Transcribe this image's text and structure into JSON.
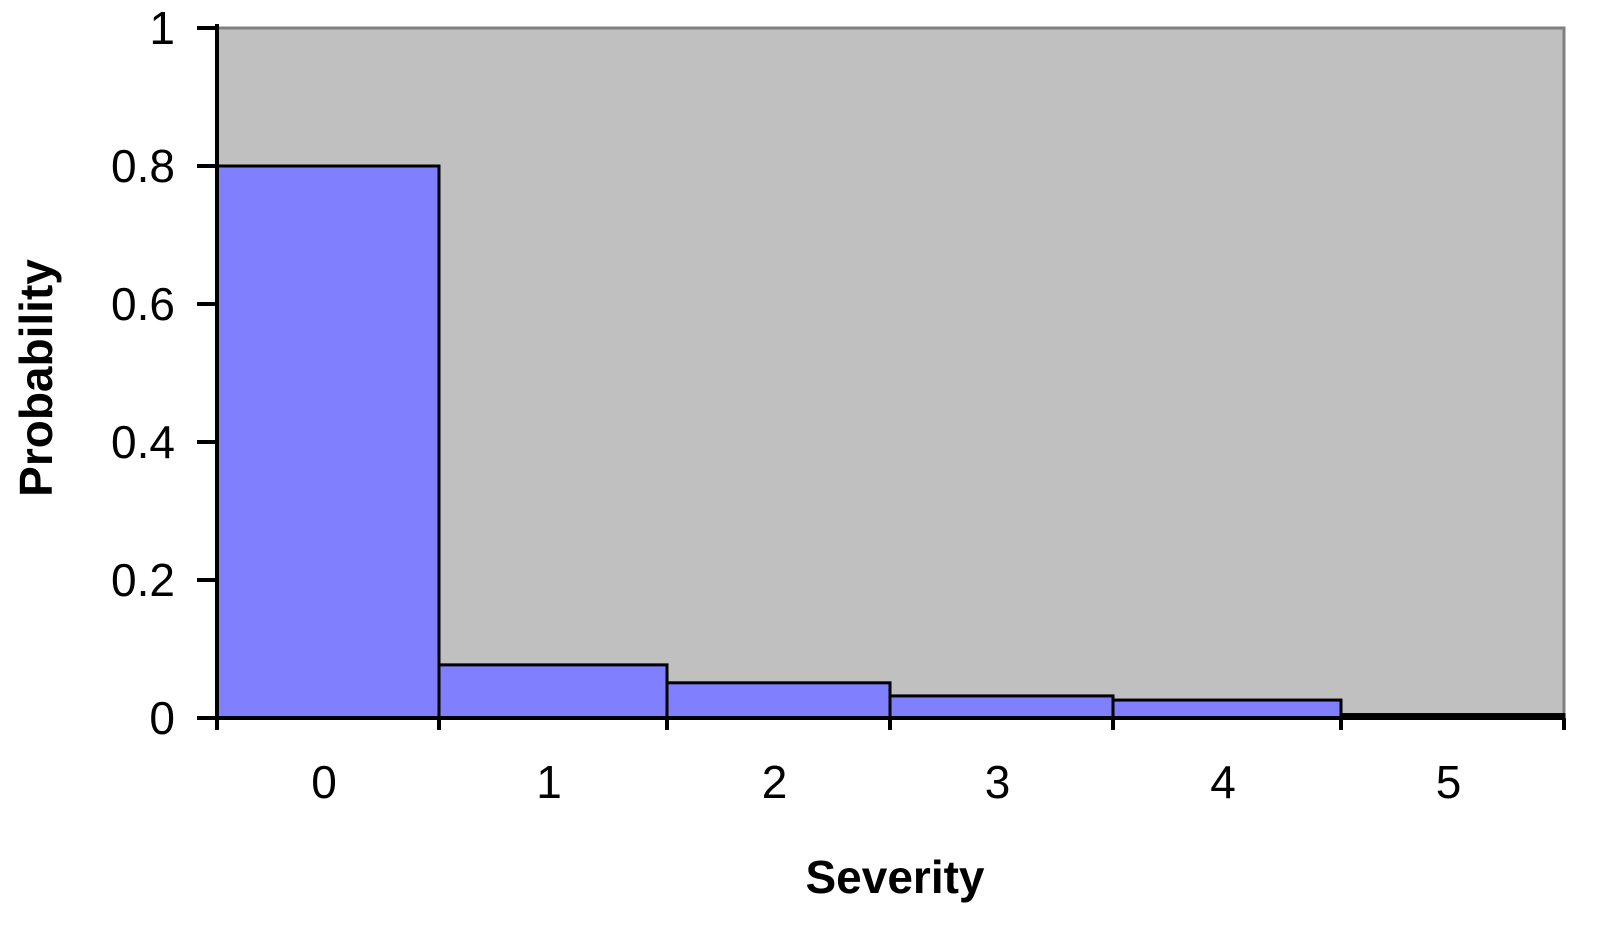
{
  "chart_data": {
    "type": "bar",
    "title": "",
    "xlabel": "Severity",
    "ylabel": "Probability",
    "categories": [
      "0",
      "1",
      "2",
      "3",
      "4",
      "5"
    ],
    "values": [
      0.8,
      0.077,
      0.051,
      0.032,
      0.026,
      0.005
    ],
    "ylim": [
      0,
      1
    ],
    "yticks": [
      "0",
      "0.2",
      "0.4",
      "0.6",
      "0.8",
      "1"
    ],
    "ytick_values": [
      0,
      0.2,
      0.4,
      0.6,
      0.8,
      1
    ],
    "grid": false,
    "legend": "none",
    "colors": {
      "plot_background": "#c0c0c0",
      "bar_fill": "#8080ff",
      "bar_stroke": "#000000",
      "axis": "#000000",
      "frame": "#808080"
    }
  }
}
